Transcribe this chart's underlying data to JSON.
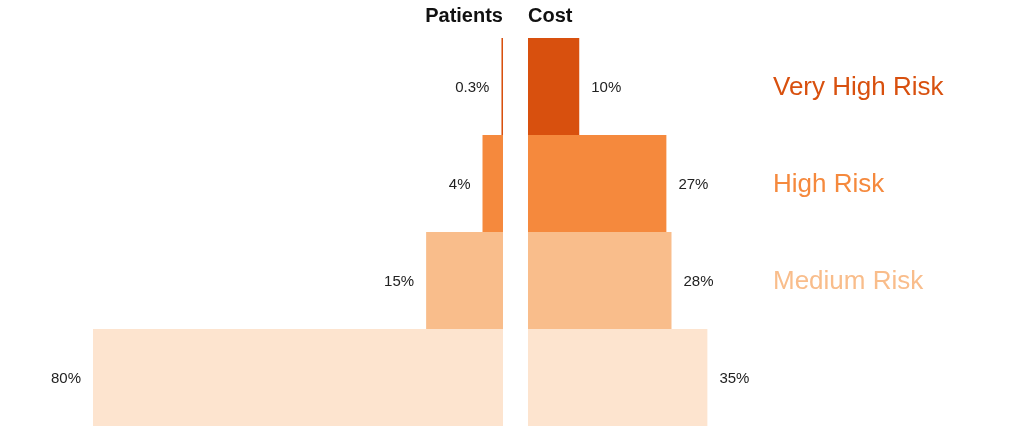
{
  "chart_data": [
    {
      "type": "bar",
      "orientation": "horizontal",
      "title": "Patients",
      "categories": [
        null,
        null,
        null,
        null
      ],
      "colors": [
        "#d8500e",
        "#f5893d",
        "#f9bd8b",
        "#fde4cf"
      ],
      "values": [
        0.3,
        4,
        15,
        80
      ],
      "value_labels": [
        "0.3%",
        "4%",
        "15%",
        "80%"
      ]
    },
    {
      "type": "bar",
      "orientation": "horizontal",
      "title": "Cost",
      "categories": [
        "Very High Risk",
        "High Risk",
        "Medium Risk",
        null
      ],
      "colors": [
        "#d8500e",
        "#f5893d",
        "#f9bd8b",
        "#fde4cf"
      ],
      "values": [
        10,
        27,
        28,
        35
      ],
      "value_labels": [
        "10%",
        "27%",
        "28%",
        "35%"
      ]
    }
  ]
}
